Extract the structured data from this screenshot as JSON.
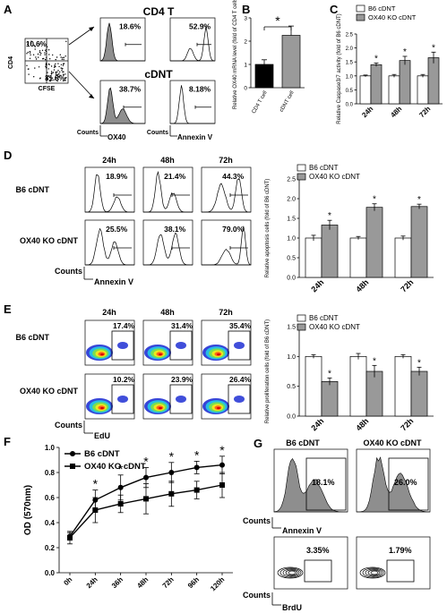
{
  "panels": {
    "A": {
      "letter": "A",
      "title_top": "CD4 T",
      "title_mid": "cDNT",
      "dot_q_ul": "10.6%",
      "dot_q_lr": "31.8%",
      "dot_ylabel": "CD4",
      "dot_xlabel": "CFSE",
      "cd4_ox40": "18.6%",
      "cd4_annexin": "52.9%",
      "cdnt_ox40": "38.7%",
      "cdnt_annexin": "8.18%",
      "counts_label": "Counts",
      "ox40_label": "OX40",
      "annexin_label": "Annexin V"
    },
    "D": {
      "letter": "D",
      "times": [
        "24h",
        "48h",
        "72h"
      ],
      "row_labels": [
        "B6 cDNT",
        "OX40 KO cDNT"
      ],
      "b6_pcts": [
        "18.9%",
        "21.4%",
        "44.3%"
      ],
      "ko_pcts": [
        "25.5%",
        "38.1%",
        "79.0%"
      ],
      "counts_label": "Counts",
      "xlabel": "Annexin V"
    },
    "E": {
      "letter": "E",
      "times": [
        "24h",
        "48h",
        "72h"
      ],
      "row_labels": [
        "B6 cDNT",
        "OX40 KO cDNT"
      ],
      "b6_pcts": [
        "17.4%",
        "31.4%",
        "35.4%"
      ],
      "ko_pcts": [
        "10.2%",
        "23.9%",
        "26.4%"
      ],
      "counts_label": "Counts",
      "xlabel": "EdU"
    },
    "G": {
      "letter": "G",
      "col_labels": [
        "B6 cDNT",
        "OX40 KO cDNT"
      ],
      "annexin_pcts": [
        "18.1%",
        "26.0%"
      ],
      "brdu_pcts": [
        "3.35%",
        "1.79%"
      ],
      "counts_label": "Counts",
      "annexin_label": "Annexin V",
      "brdu_label": "BrdU"
    }
  },
  "chart_data": [
    {
      "id": "B",
      "letter": "B",
      "type": "bar",
      "categories": [
        "CD4 T cell",
        "cDNT cell"
      ],
      "values": [
        1.0,
        2.25
      ],
      "errors": [
        0.2,
        0.4
      ],
      "colors": [
        "#000000",
        "#9a9a9a"
      ],
      "ylabel": "Relative OX40 mRNA level (fold of CD4 T cells)",
      "ylim": [
        0,
        3
      ],
      "yticks": [
        "0",
        "1",
        "2",
        "3"
      ],
      "annotation": "*"
    },
    {
      "id": "C",
      "letter": "C",
      "type": "bar",
      "categories": [
        "24h",
        "48h",
        "72h"
      ],
      "series": [
        {
          "name": "B6 cDNT",
          "values": [
            1.0,
            1.0,
            1.0
          ],
          "errors": [
            0.03,
            0.05,
            0.05
          ],
          "color": "#ffffff"
        },
        {
          "name": "OX40 KO cDNT",
          "values": [
            1.4,
            1.55,
            1.65
          ],
          "errors": [
            0.06,
            0.15,
            0.2
          ],
          "color": "#999999"
        }
      ],
      "ylabel": "Relative Caspase3/7 activity (fold of B6 cDNT)",
      "ylim": [
        0,
        2.5
      ],
      "yticks": [
        "0.0",
        "0.5",
        "1.0",
        "1.5",
        "2.0",
        "2.5"
      ],
      "stars": [
        "*",
        "*",
        "*"
      ],
      "legend": "top-right"
    },
    {
      "id": "D",
      "letter": "",
      "type": "bar",
      "categories": [
        "24h",
        "48h",
        "72h"
      ],
      "series": [
        {
          "name": "B6 cDNT",
          "values": [
            1.0,
            1.0,
            1.0
          ],
          "errors": [
            0.07,
            0.04,
            0.05
          ],
          "color": "#ffffff"
        },
        {
          "name": "OX40 KO cDNT",
          "values": [
            1.33,
            1.78,
            1.8
          ],
          "errors": [
            0.12,
            0.09,
            0.06
          ],
          "color": "#999999"
        }
      ],
      "ylabel": "Relative apoptosis cells (fold of B6 cDNT)",
      "ylim": [
        0,
        2.5
      ],
      "yticks": [
        "0.0",
        "0.5",
        "1.0",
        "1.5",
        "2.0",
        "2.5"
      ],
      "stars": [
        "*",
        "*",
        "*"
      ],
      "legend": "top-right"
    },
    {
      "id": "E",
      "letter": "",
      "type": "bar",
      "categories": [
        "24h",
        "48h",
        "72h"
      ],
      "series": [
        {
          "name": "B6 cDNT",
          "values": [
            1.0,
            1.0,
            1.0
          ],
          "errors": [
            0.03,
            0.05,
            0.03
          ],
          "color": "#ffffff"
        },
        {
          "name": "OX40 KO cDNT",
          "values": [
            0.58,
            0.75,
            0.75
          ],
          "errors": [
            0.06,
            0.1,
            0.07
          ],
          "color": "#999999"
        }
      ],
      "ylabel": "Relative proliferation cells (fold of B6 cDNT)",
      "ylim": [
        0,
        1.5
      ],
      "yticks": [
        "0.0",
        "0.5",
        "1.0",
        "1.5"
      ],
      "stars": [
        "*",
        "*",
        "*"
      ],
      "legend": "top-right"
    },
    {
      "id": "F",
      "letter": "F",
      "type": "line",
      "categories": [
        "0h",
        "24h",
        "36h",
        "48h",
        "72h",
        "96h",
        "120h"
      ],
      "series": [
        {
          "name": "B6 cDNT",
          "marker": "circle",
          "values": [
            0.29,
            0.58,
            0.68,
            0.76,
            0.8,
            0.84,
            0.86
          ],
          "errors": [
            0.03,
            0.08,
            0.1,
            0.08,
            0.08,
            0.05,
            0.07
          ]
        },
        {
          "name": "OX40 KO cDNT",
          "marker": "square",
          "values": [
            0.28,
            0.5,
            0.55,
            0.59,
            0.63,
            0.66,
            0.7
          ],
          "errors": [
            0.05,
            0.1,
            0.07,
            0.12,
            0.1,
            0.07,
            0.1
          ]
        }
      ],
      "ylabel": "OD (570nm)",
      "ylim": [
        0,
        1.0
      ],
      "yticks": [
        "0.0",
        "0.2",
        "0.4",
        "0.6",
        "0.8",
        "1.0"
      ],
      "stars": [
        "",
        "*",
        "*",
        "*",
        "*",
        "*",
        "*"
      ],
      "legend": "top-left"
    }
  ]
}
